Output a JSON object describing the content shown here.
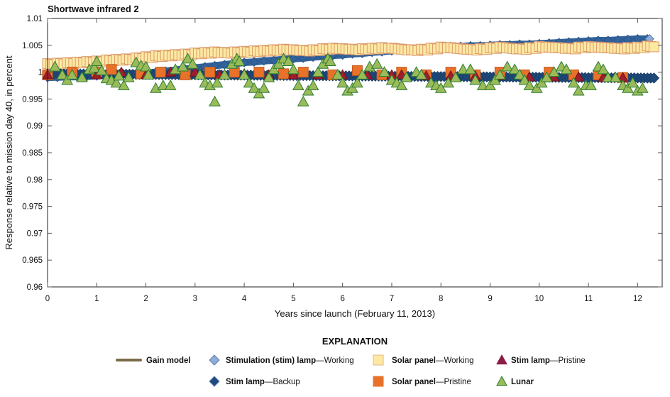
{
  "chart_data": {
    "type": "scatter",
    "title": "Shortwave infrared 2",
    "xlabel": "Years since launch (February 11, 2013)",
    "ylabel": "Response relative to mission day 40, in percent",
    "xlim": [
      0,
      12.5
    ],
    "ylim": [
      0.96,
      1.01
    ],
    "xticks": [
      "0",
      "1",
      "2",
      "3",
      "4",
      "5",
      "6",
      "7",
      "8",
      "9",
      "10",
      "11",
      "12"
    ],
    "yticks": [
      "0.96",
      "0.965",
      "0.97",
      "0.975",
      "0.98",
      "0.985",
      "0.99",
      "0.995",
      "1",
      "1.005",
      "1.01"
    ],
    "grid": false,
    "legend_title": "EXPLANATION",
    "legend_placement": "bottom",
    "legend": [
      {
        "id": "gain",
        "bold": "Gain model",
        "rest": "",
        "marker": "line",
        "color": "#7d6b48"
      },
      {
        "id": "stim_working",
        "bold": "Stimulation (stim) lamp",
        "rest": "—Working",
        "marker": "diamond",
        "color": "#8eacd6"
      },
      {
        "id": "solar_working",
        "bold": "Solar panel",
        "rest": "—Working",
        "marker": "square",
        "color": "#fde9a2"
      },
      {
        "id": "stim_pristine",
        "bold": "Stim lamp",
        "rest": "—Pristine",
        "marker": "triangle",
        "color": "#8e1b47"
      },
      {
        "id": "stim_backup",
        "bold": "Stim lamp",
        "rest": "—Backup",
        "marker": "diamond",
        "color": "#1f4a7c"
      },
      {
        "id": "solar_pristine",
        "bold": "Solar panel",
        "rest": "—Pristine",
        "marker": "square",
        "color": "#e8722a"
      },
      {
        "id": "lunar",
        "bold": "Lunar",
        "rest": "",
        "marker": "triangle",
        "color": "#9bbb59"
      }
    ],
    "x": [
      0,
      0.2,
      0.4,
      0.6,
      0.8,
      1.0,
      1.2,
      1.4,
      1.6,
      1.8,
      2.0,
      2.2,
      2.4,
      2.6,
      2.8,
      3.0,
      3.2,
      3.4,
      3.6,
      3.8,
      4.0,
      4.2,
      4.4,
      4.6,
      4.8,
      5.0,
      5.2,
      5.4,
      5.6,
      5.8,
      6.0,
      6.2,
      6.4,
      6.6,
      6.8,
      7.0,
      7.2,
      7.4,
      7.6,
      7.8,
      8.0,
      8.2,
      8.4,
      8.6,
      8.8,
      9.0,
      9.2,
      9.4,
      9.6,
      9.8,
      10.0,
      10.2,
      10.4,
      10.6,
      10.8,
      11.0,
      11.2,
      11.4,
      11.6,
      11.8,
      12.0,
      12.2
    ],
    "series": [
      {
        "name": "Stimulation (stim) lamp—Working",
        "id": "stim_working",
        "values": [
          0.999,
          0.99905,
          0.9991,
          0.99915,
          0.9992,
          0.9993,
          0.9994,
          0.9995,
          0.9996,
          0.9997,
          0.9998,
          1.0,
          1.0002,
          1.0004,
          1.0006,
          1.0008,
          1.001,
          1.0012,
          1.0014,
          1.0016,
          1.0018,
          1.0019,
          1.0021,
          1.0022,
          1.0024,
          1.0025,
          1.0026,
          1.0028,
          1.0029,
          1.0031,
          1.0032,
          1.0034,
          1.0035,
          1.0037,
          1.0038,
          1.004,
          1.0041,
          1.0043,
          1.0044,
          1.0046,
          1.0047,
          1.0048,
          1.0048,
          1.0049,
          1.0049,
          1.005,
          1.0051,
          1.0051,
          1.0052,
          1.0052,
          1.0053,
          1.0054,
          1.0055,
          1.0056,
          1.0057,
          1.0058,
          1.0059,
          1.0059,
          1.006,
          1.0061,
          1.0062,
          1.0062
        ]
      },
      {
        "name": "Solar panel—Working",
        "id": "solar_working",
        "values": [
          1.0015,
          1.0016,
          1.0017,
          1.0018,
          1.0019,
          1.002,
          1.0022,
          1.0023,
          1.0024,
          1.0026,
          1.0028,
          1.003,
          1.0031,
          1.0032,
          1.0033,
          1.0035,
          1.0036,
          1.0037,
          1.0036,
          1.0037,
          1.0038,
          1.0039,
          1.004,
          1.0041,
          1.0042,
          1.0041,
          1.004,
          1.0041,
          1.0043,
          1.0044,
          1.0043,
          1.0042,
          1.0043,
          1.0044,
          1.0045,
          1.0044,
          1.0042,
          1.0041,
          1.0042,
          1.0044,
          1.0046,
          1.0045,
          1.0043,
          1.0042,
          1.0043,
          1.0045,
          1.0046,
          1.0044,
          1.0043,
          1.0045,
          1.0047,
          1.0046,
          1.0045,
          1.0044,
          1.0046,
          1.0047,
          1.0046,
          1.0045,
          1.0044,
          1.0045,
          1.0046,
          1.0048
        ]
      },
      {
        "name": "Stim lamp—Backup",
        "id": "stim_backup",
        "values": [
          0.9997,
          0.99969,
          0.99967,
          0.99966,
          0.99965,
          0.99963,
          0.99962,
          0.99961,
          0.9996,
          0.99958,
          0.99957,
          0.99956,
          0.99954,
          0.99953,
          0.99952,
          0.9995,
          0.99949,
          0.99948,
          0.99946,
          0.99945,
          0.99944,
          0.99942,
          0.99941,
          0.9994,
          0.99938,
          0.99937,
          0.99936,
          0.99934,
          0.99933,
          0.99932,
          0.99931,
          0.99929,
          0.99928,
          0.99927,
          0.99925,
          0.99924,
          0.99923,
          0.99921,
          0.9992,
          0.99919,
          0.99918,
          0.99916,
          0.99915,
          0.99914,
          0.99912,
          0.99911,
          0.9991,
          0.99908,
          0.99907,
          0.99906,
          0.99904,
          0.99903,
          0.99902,
          0.999,
          0.99899,
          0.99898,
          0.99897,
          0.99895,
          0.99894,
          0.99893,
          0.99891,
          0.9989
        ]
      }
    ],
    "solar_pristine": {
      "name": "Solar panel—Pristine",
      "x": [
        0.0,
        0.5,
        1.0,
        1.3,
        1.9,
        2.3,
        2.8,
        3.3,
        3.8,
        4.3,
        4.8,
        5.2,
        5.8,
        6.3,
        6.8,
        7.2,
        7.7,
        8.2,
        8.7,
        9.2,
        9.7,
        10.2,
        10.7,
        11.2,
        11.7
      ],
      "y": [
        0.9995,
        1.0,
        1.0,
        1.0005,
        0.9997,
        1.0,
        0.9995,
        1.0,
        1.0,
        1.0,
        0.9997,
        1.0,
        0.9995,
        1.0003,
        0.9995,
        1.0,
        0.9995,
        1.0,
        0.9995,
        1.0,
        0.9995,
        1.0,
        0.9995,
        0.9995,
        0.999
      ]
    },
    "stim_pristine": {
      "name": "Stim lamp—Pristine",
      "x": [
        0.0,
        0.5,
        1.0,
        1.5,
        2.0,
        2.5,
        3.0,
        3.5,
        4.0,
        4.5,
        5.0,
        5.5,
        6.0,
        6.5,
        7.0,
        7.2,
        7.7,
        8.2,
        8.7,
        9.2,
        9.8,
        10.3,
        10.8,
        11.3,
        11.7
      ],
      "y": [
        0.9995,
        0.9995,
        0.9995,
        1.0,
        0.9995,
        1.0,
        1.0,
        0.9995,
        0.9997,
        0.9995,
        0.9995,
        0.9995,
        0.9995,
        0.9995,
        0.9995,
        0.9995,
        0.9993,
        0.9993,
        0.9993,
        0.9993,
        0.9991,
        0.9991,
        0.9991,
        0.999,
        0.999
      ]
    },
    "lunar": {
      "name": "Lunar",
      "x": [
        0.15,
        0.3,
        0.4,
        0.5,
        0.7,
        0.85,
        0.95,
        1.0,
        1.1,
        1.2,
        1.3,
        1.4,
        1.45,
        1.55,
        1.65,
        1.8,
        1.9,
        2.0,
        2.05,
        2.2,
        2.35,
        2.5,
        2.6,
        2.75,
        2.85,
        2.95,
        3.1,
        3.2,
        3.3,
        3.4,
        3.45,
        3.6,
        3.75,
        3.85,
        3.9,
        4.0,
        4.1,
        4.2,
        4.3,
        4.4,
        4.5,
        4.6,
        4.7,
        4.8,
        4.9,
        5.0,
        5.1,
        5.2,
        5.3,
        5.4,
        5.5,
        5.6,
        5.7,
        5.75,
        5.9,
        6.0,
        6.1,
        6.2,
        6.3,
        6.4,
        6.55,
        6.7,
        6.85,
        7.0,
        7.1,
        7.2,
        7.3,
        7.5,
        7.6,
        7.8,
        7.9,
        8.0,
        8.15,
        8.3,
        8.45,
        8.6,
        8.7,
        8.85,
        9.0,
        9.1,
        9.2,
        9.35,
        9.5,
        9.6,
        9.7,
        9.8,
        9.95,
        10.05,
        10.15,
        10.3,
        10.45,
        10.55,
        10.7,
        10.8,
        10.95,
        11.05,
        11.2,
        11.3,
        11.4,
        11.55,
        11.7,
        11.8,
        11.9,
        12.0,
        12.1
      ],
      "y": [
        1.001,
        0.9995,
        0.9985,
        0.9995,
        0.999,
        1.0005,
        1.0008,
        1.002,
        1.0003,
        0.9988,
        0.9985,
        0.998,
        0.9993,
        0.9975,
        0.999,
        1.0018,
        1.0012,
        1.001,
        0.9995,
        0.997,
        0.9975,
        0.9975,
        1.0005,
        1.001,
        1.0025,
        1.0015,
        0.9995,
        0.998,
        0.9975,
        0.9945,
        0.998,
        0.9995,
        1.0015,
        1.0025,
        1.002,
        0.9995,
        0.998,
        0.997,
        0.996,
        0.997,
        0.999,
        1.0005,
        1.0015,
        1.0025,
        1.002,
        1.0005,
        0.9975,
        0.9945,
        0.9965,
        0.9975,
        1.0,
        1.0015,
        1.0025,
        1.002,
        0.9995,
        0.998,
        0.9965,
        0.997,
        0.998,
        0.9995,
        1.001,
        1.0015,
        1.0,
        0.9985,
        0.998,
        0.9975,
        0.999,
        1.0,
        0.9995,
        0.998,
        0.9975,
        0.997,
        0.998,
        0.999,
        1.0005,
        1.0005,
        0.9985,
        0.9975,
        0.9975,
        0.9985,
        0.9995,
        1.001,
        1.0005,
        0.9995,
        0.9985,
        0.9975,
        0.997,
        0.998,
        0.999,
        1.0,
        1.001,
        1.0005,
        0.998,
        0.9965,
        0.9975,
        0.9975,
        1.001,
        1.0005,
        0.999,
        0.999,
        0.9975,
        0.997,
        0.998,
        0.9965,
        0.997
      ]
    }
  }
}
